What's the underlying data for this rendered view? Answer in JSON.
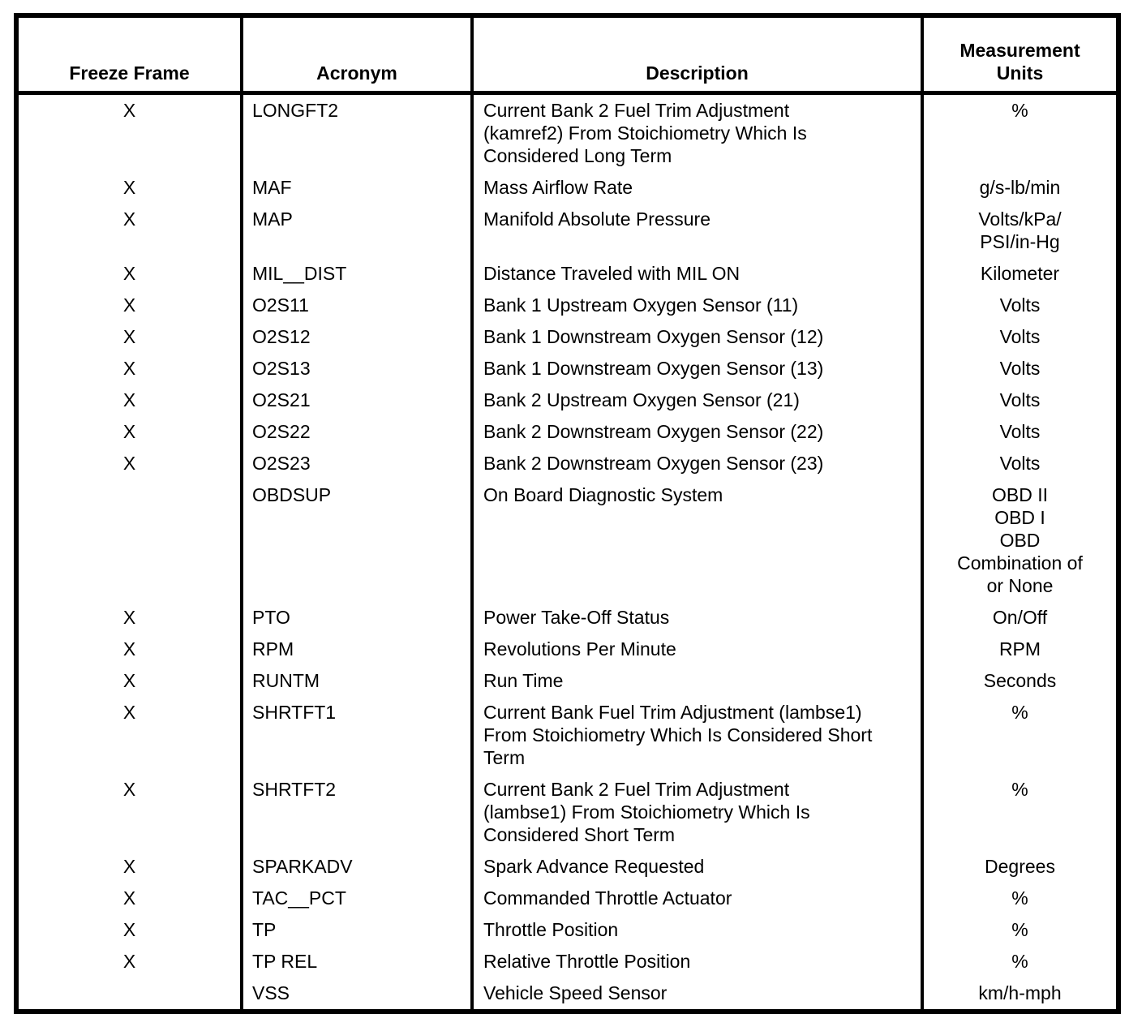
{
  "page": {
    "background_color": "#ffffff",
    "border_color": "#000000",
    "text_color": "#000000"
  },
  "table": {
    "headers": {
      "freeze_frame": "Freeze Frame",
      "acronym": "Acronym",
      "description": "Description",
      "units": [
        "Measurement",
        "Units"
      ]
    },
    "rows": [
      {
        "freeze_frame": "X",
        "acronym": "LONGFT2",
        "description": [
          "Current Bank 2 Fuel Trim Adjustment",
          "(kamref2) From Stoichiometry Which Is",
          "Considered Long Term"
        ],
        "units": "%"
      },
      {
        "freeze_frame": "X",
        "acronym": "MAF",
        "description": "Mass Airflow Rate",
        "units": "g/s-lb/min"
      },
      {
        "freeze_frame": "X",
        "acronym": "MAP",
        "description": "Manifold Absolute Pressure",
        "units": [
          "Volts/kPa/",
          "PSI/in-Hg"
        ]
      },
      {
        "freeze_frame": "X",
        "acronym": "MIL__DIST",
        "description": "Distance Traveled with MIL ON",
        "units": "Kilometer"
      },
      {
        "freeze_frame": "X",
        "acronym": "O2S11",
        "description": "Bank 1 Upstream Oxygen Sensor (11)",
        "units": "Volts"
      },
      {
        "freeze_frame": "X",
        "acronym": "O2S12",
        "description": "Bank 1 Downstream Oxygen Sensor (12)",
        "units": "Volts"
      },
      {
        "freeze_frame": "X",
        "acronym": "O2S13",
        "description": "Bank 1 Downstream Oxygen Sensor (13)",
        "units": "Volts"
      },
      {
        "freeze_frame": "X",
        "acronym": "O2S21",
        "description": "Bank 2 Upstream Oxygen Sensor (21)",
        "units": "Volts"
      },
      {
        "freeze_frame": "X",
        "acronym": "O2S22",
        "description": "Bank 2 Downstream Oxygen Sensor (22)",
        "units": "Volts"
      },
      {
        "freeze_frame": "X",
        "acronym": "O2S23",
        "description": "Bank 2 Downstream Oxygen Sensor (23)",
        "units": "Volts"
      },
      {
        "freeze_frame": "",
        "acronym": "OBDSUP",
        "description": "On Board Diagnostic System",
        "units": [
          "OBD II",
          "OBD I",
          "OBD",
          "Combination of",
          "or None"
        ]
      },
      {
        "freeze_frame": "X",
        "acronym": "PTO",
        "description": "Power Take-Off Status",
        "units": "On/Off"
      },
      {
        "freeze_frame": "X",
        "acronym": "RPM",
        "description": "Revolutions Per Minute",
        "units": "RPM"
      },
      {
        "freeze_frame": "X",
        "acronym": "RUNTM",
        "description": "Run Time",
        "units": "Seconds"
      },
      {
        "freeze_frame": "X",
        "acronym": "SHRTFT1",
        "description": [
          "Current Bank Fuel Trim Adjustment (lambse1)",
          "From Stoichiometry Which Is Considered Short",
          "Term"
        ],
        "units": "%"
      },
      {
        "freeze_frame": "X",
        "acronym": "SHRTFT2",
        "description": [
          "Current Bank 2 Fuel Trim Adjustment",
          "(lambse1) From Stoichiometry Which Is",
          "Considered Short Term"
        ],
        "units": "%"
      },
      {
        "freeze_frame": "X",
        "acronym": "SPARKADV",
        "description": "Spark Advance Requested",
        "units": "Degrees"
      },
      {
        "freeze_frame": "X",
        "acronym": "TAC__PCT",
        "description": "Commanded Throttle Actuator",
        "units": "%"
      },
      {
        "freeze_frame": "X",
        "acronym": "TP",
        "description": "Throttle Position",
        "units": "%"
      },
      {
        "freeze_frame": "X",
        "acronym": "TP REL",
        "description": "Relative Throttle Position",
        "units": "%"
      },
      {
        "freeze_frame": "",
        "acronym": "VSS",
        "description": "Vehicle Speed Sensor",
        "units": "km/h-mph"
      }
    ]
  }
}
